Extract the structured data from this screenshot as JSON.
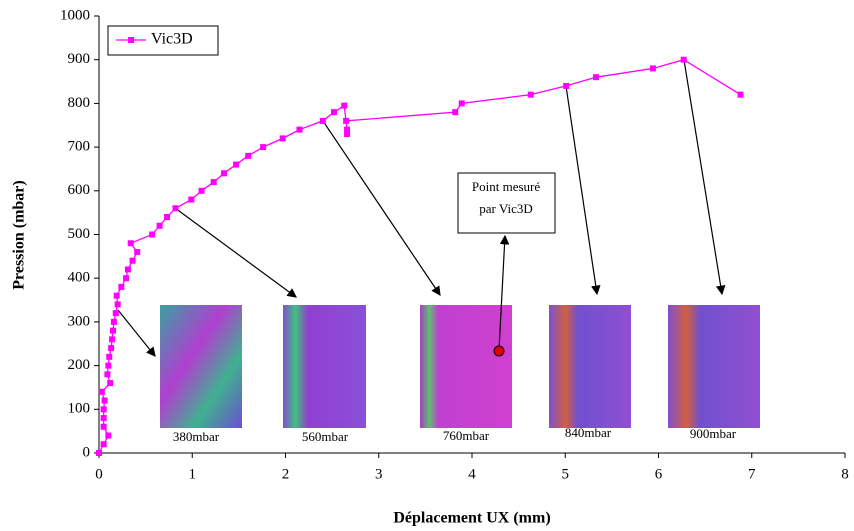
{
  "chart_data": {
    "type": "line",
    "xlabel": "Déplacement UX (mm)",
    "ylabel": "Pression (mbar)",
    "xlim": [
      0,
      8
    ],
    "xticks": [
      0,
      1,
      2,
      3,
      4,
      5,
      6,
      7,
      8
    ],
    "ylim": [
      0,
      1000
    ],
    "yticks": [
      0,
      100,
      200,
      300,
      400,
      500,
      600,
      700,
      800,
      900,
      1000
    ],
    "legend": "upper left",
    "series": [
      {
        "name": "Vic3D",
        "color": "#ff00ff",
        "x": [
          0,
          0.05,
          0.1,
          0.05,
          0.05,
          0.05,
          0.06,
          0.03,
          0.12,
          0.09,
          0.1,
          0.11,
          0.13,
          0.14,
          0.15,
          0.16,
          0.18,
          0.2,
          0.19,
          0.24,
          0.29,
          0.31,
          0.36,
          0.41,
          0.34,
          0.57,
          0.65,
          0.73,
          0.82,
          0.99,
          1.1,
          1.23,
          1.34,
          1.47,
          1.6,
          1.76,
          1.97,
          2.15,
          2.4,
          2.52,
          2.63,
          2.66,
          2.66,
          2.65,
          3.82,
          3.89,
          4.63,
          5.01,
          5.33,
          5.94,
          6.27,
          6.88
        ],
        "values": [
          0,
          20,
          40,
          60,
          80,
          100,
          120,
          140,
          160,
          180,
          200,
          220,
          240,
          260,
          280,
          300,
          320,
          340,
          360,
          380,
          400,
          420,
          440,
          460,
          480,
          500,
          520,
          540,
          560,
          580,
          600,
          620,
          640,
          660,
          680,
          700,
          720,
          740,
          760,
          780,
          795,
          740,
          730,
          760,
          780,
          800,
          820,
          840,
          860,
          880,
          900,
          820
        ]
      }
    ],
    "annotation": [
      "Point mesuré",
      "par Vic3D"
    ],
    "image_labels": [
      "380mbar",
      "560mbar",
      "760mbar",
      "840mbar",
      "900mbar"
    ]
  }
}
